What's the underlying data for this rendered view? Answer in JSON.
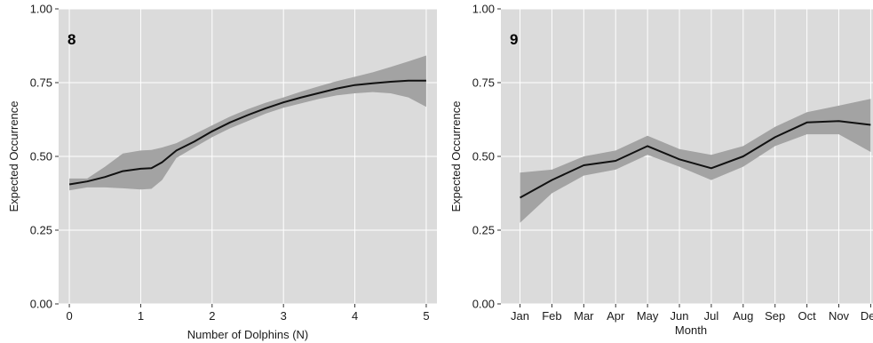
{
  "chart_data": [
    {
      "type": "line",
      "panel_label": "8",
      "xlabel": "Number of Dolphins (N)",
      "ylabel": "Expected Occurrence",
      "xlim": [
        -0.15,
        5.15
      ],
      "ylim": [
        0,
        1
      ],
      "x_ticks": [
        "0",
        "1",
        "2",
        "3",
        "4",
        "5"
      ],
      "y_ticks": [
        "0.00",
        "0.25",
        "0.50",
        "0.75",
        "1.00"
      ],
      "grid": true,
      "colors": {
        "panel_bg": "#dbdbdb",
        "grid": "#ffffff",
        "ribbon": "#a3a3a3",
        "line": "#111111"
      },
      "series": [
        {
          "x": [
            0,
            0.25,
            0.5,
            0.75,
            1.0,
            1.15,
            1.3,
            1.5,
            1.75,
            2.0,
            2.25,
            2.5,
            2.75,
            3.0,
            3.25,
            3.5,
            3.75,
            4.0,
            4.25,
            4.5,
            4.75,
            5.0
          ],
          "y": [
            0.405,
            0.415,
            0.43,
            0.45,
            0.458,
            0.46,
            0.48,
            0.52,
            0.55,
            0.585,
            0.615,
            0.64,
            0.663,
            0.683,
            0.7,
            0.715,
            0.73,
            0.742,
            0.748,
            0.753,
            0.757,
            0.757
          ],
          "lower": [
            0.385,
            0.395,
            0.395,
            0.392,
            0.388,
            0.39,
            0.42,
            0.495,
            0.53,
            0.565,
            0.595,
            0.62,
            0.645,
            0.665,
            0.68,
            0.695,
            0.707,
            0.714,
            0.718,
            0.714,
            0.7,
            0.668
          ],
          "upper": [
            0.425,
            0.425,
            0.465,
            0.51,
            0.52,
            0.522,
            0.53,
            0.545,
            0.575,
            0.605,
            0.635,
            0.66,
            0.682,
            0.7,
            0.72,
            0.738,
            0.755,
            0.77,
            0.785,
            0.803,
            0.822,
            0.842
          ]
        }
      ]
    },
    {
      "type": "line",
      "panel_label": "9",
      "xlabel": "Month",
      "ylabel": "Expected Occurrence",
      "xlim": [
        0.4,
        12.1
      ],
      "ylim": [
        0,
        1
      ],
      "categories": [
        "Jan",
        "Feb",
        "Mar",
        "Apr",
        "May",
        "Jun",
        "Jul",
        "Aug",
        "Sep",
        "Oct",
        "Nov",
        "Dec"
      ],
      "y_ticks": [
        "0.00",
        "0.25",
        "0.50",
        "0.75",
        "1.00"
      ],
      "grid": true,
      "colors": {
        "panel_bg": "#dbdbdb",
        "grid": "#ffffff",
        "ribbon": "#a3a3a3",
        "line": "#111111"
      },
      "series": [
        {
          "values": [
            0.36,
            0.42,
            0.47,
            0.485,
            0.535,
            0.49,
            0.46,
            0.5,
            0.565,
            0.615,
            0.62,
            0.607
          ],
          "lower": [
            0.275,
            0.375,
            0.435,
            0.455,
            0.505,
            0.465,
            0.42,
            0.465,
            0.535,
            0.575,
            0.575,
            0.515
          ],
          "upper": [
            0.445,
            0.455,
            0.5,
            0.52,
            0.57,
            0.525,
            0.505,
            0.535,
            0.6,
            0.65,
            0.672,
            0.695
          ]
        }
      ]
    }
  ]
}
